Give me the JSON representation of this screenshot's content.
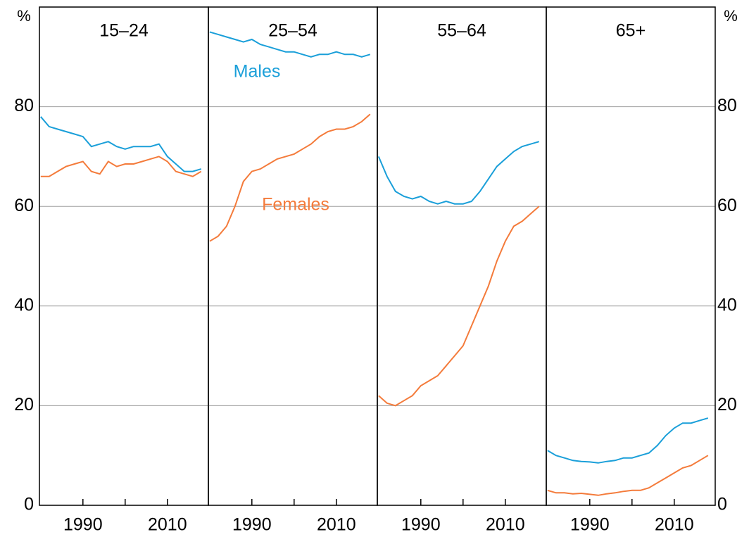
{
  "chart_data": [
    {
      "type": "line",
      "title": "15–24",
      "ylabel": "%",
      "x": [
        1980,
        1982,
        1984,
        1986,
        1988,
        1990,
        1992,
        1994,
        1996,
        1998,
        2000,
        2002,
        2004,
        2006,
        2008,
        2010,
        2012,
        2014,
        2016,
        2018
      ],
      "xlim": [
        1979.7,
        2019.7
      ],
      "xticks": [
        1990,
        2010
      ],
      "minor_xticks": [
        2000
      ],
      "ylim": [
        0,
        100
      ],
      "yticks": [
        0,
        20,
        40,
        60,
        80
      ],
      "grid": true,
      "series": [
        {
          "color": "#1a9fd9",
          "values": [
            78,
            76,
            75.5,
            75,
            74.5,
            74,
            72,
            72.5,
            73,
            72,
            71.5,
            72,
            72,
            72,
            72.5,
            70,
            68.5,
            67,
            67,
            67.5
          ]
        },
        {
          "color": "#f47b3b",
          "values": [
            66,
            66,
            67,
            68,
            68.5,
            69,
            67,
            66.5,
            69,
            68,
            68.5,
            68.5,
            69,
            69.5,
            70,
            69,
            67,
            66.5,
            66,
            67
          ]
        }
      ]
    },
    {
      "type": "line",
      "title": "25–54",
      "x": [
        1980,
        1982,
        1984,
        1986,
        1988,
        1990,
        1992,
        1994,
        1996,
        1998,
        2000,
        2002,
        2004,
        2006,
        2008,
        2010,
        2012,
        2014,
        2016,
        2018
      ],
      "xlim": [
        1979.7,
        2019.7
      ],
      "xticks": [
        1990,
        2010
      ],
      "minor_xticks": [
        2000
      ],
      "ylim": [
        0,
        100
      ],
      "yticks": [
        0,
        20,
        40,
        60,
        80
      ],
      "grid": true,
      "series": [
        {
          "name": "Males",
          "color": "#1a9fd9",
          "values": [
            95,
            94.5,
            94,
            93.5,
            93,
            93.5,
            92.5,
            92,
            91.5,
            91,
            91,
            90.5,
            90,
            90.5,
            90.5,
            91,
            90.5,
            90.5,
            90,
            90.5
          ]
        },
        {
          "name": "Females",
          "color": "#f47b3b",
          "values": [
            53,
            54,
            56,
            60,
            65,
            67,
            67.5,
            68.5,
            69.5,
            70,
            70.5,
            71.5,
            72.5,
            74,
            75,
            75.5,
            75.5,
            76,
            77,
            78.5
          ]
        }
      ]
    },
    {
      "type": "line",
      "title": "55–64",
      "x": [
        1980,
        1982,
        1984,
        1986,
        1988,
        1990,
        1992,
        1994,
        1996,
        1998,
        2000,
        2002,
        2004,
        2006,
        2008,
        2010,
        2012,
        2014,
        2016,
        2018
      ],
      "xlim": [
        1979.7,
        2019.7
      ],
      "xticks": [
        1990,
        2010
      ],
      "minor_xticks": [
        2000
      ],
      "ylim": [
        0,
        100
      ],
      "yticks": [
        0,
        20,
        40,
        60,
        80
      ],
      "grid": true,
      "series": [
        {
          "color": "#1a9fd9",
          "values": [
            70,
            66,
            63,
            62,
            61.5,
            62,
            61,
            60.5,
            61,
            60.5,
            60.5,
            61,
            63,
            65.5,
            68,
            69.5,
            71,
            72,
            72.5,
            73
          ]
        },
        {
          "color": "#f47b3b",
          "values": [
            22,
            20.5,
            20,
            21,
            22,
            24,
            25,
            26,
            28,
            30,
            32,
            36,
            40,
            44,
            49,
            53,
            56,
            57,
            58.5,
            60
          ]
        }
      ]
    },
    {
      "type": "line",
      "title": "65+",
      "ylabel": "%",
      "x": [
        1980,
        1982,
        1984,
        1986,
        1988,
        1990,
        1992,
        1994,
        1996,
        1998,
        2000,
        2002,
        2004,
        2006,
        2008,
        2010,
        2012,
        2014,
        2016,
        2018
      ],
      "xlim": [
        1979.7,
        2019.7
      ],
      "xticks": [
        1990,
        2010
      ],
      "minor_xticks": [
        2000
      ],
      "ylim": [
        0,
        100
      ],
      "yticks": [
        0,
        20,
        40,
        60,
        80
      ],
      "grid": true,
      "series": [
        {
          "color": "#1a9fd9",
          "values": [
            11,
            10,
            9.5,
            9,
            8.8,
            8.7,
            8.5,
            8.8,
            9,
            9.5,
            9.5,
            10,
            10.5,
            12,
            14,
            15.5,
            16.5,
            16.5,
            17,
            17.5
          ]
        },
        {
          "color": "#f47b3b",
          "values": [
            3,
            2.5,
            2.5,
            2.3,
            2.4,
            2.2,
            2,
            2.3,
            2.5,
            2.8,
            3,
            3,
            3.5,
            4.5,
            5.5,
            6.5,
            7.5,
            8,
            9,
            10
          ]
        }
      ]
    }
  ]
}
